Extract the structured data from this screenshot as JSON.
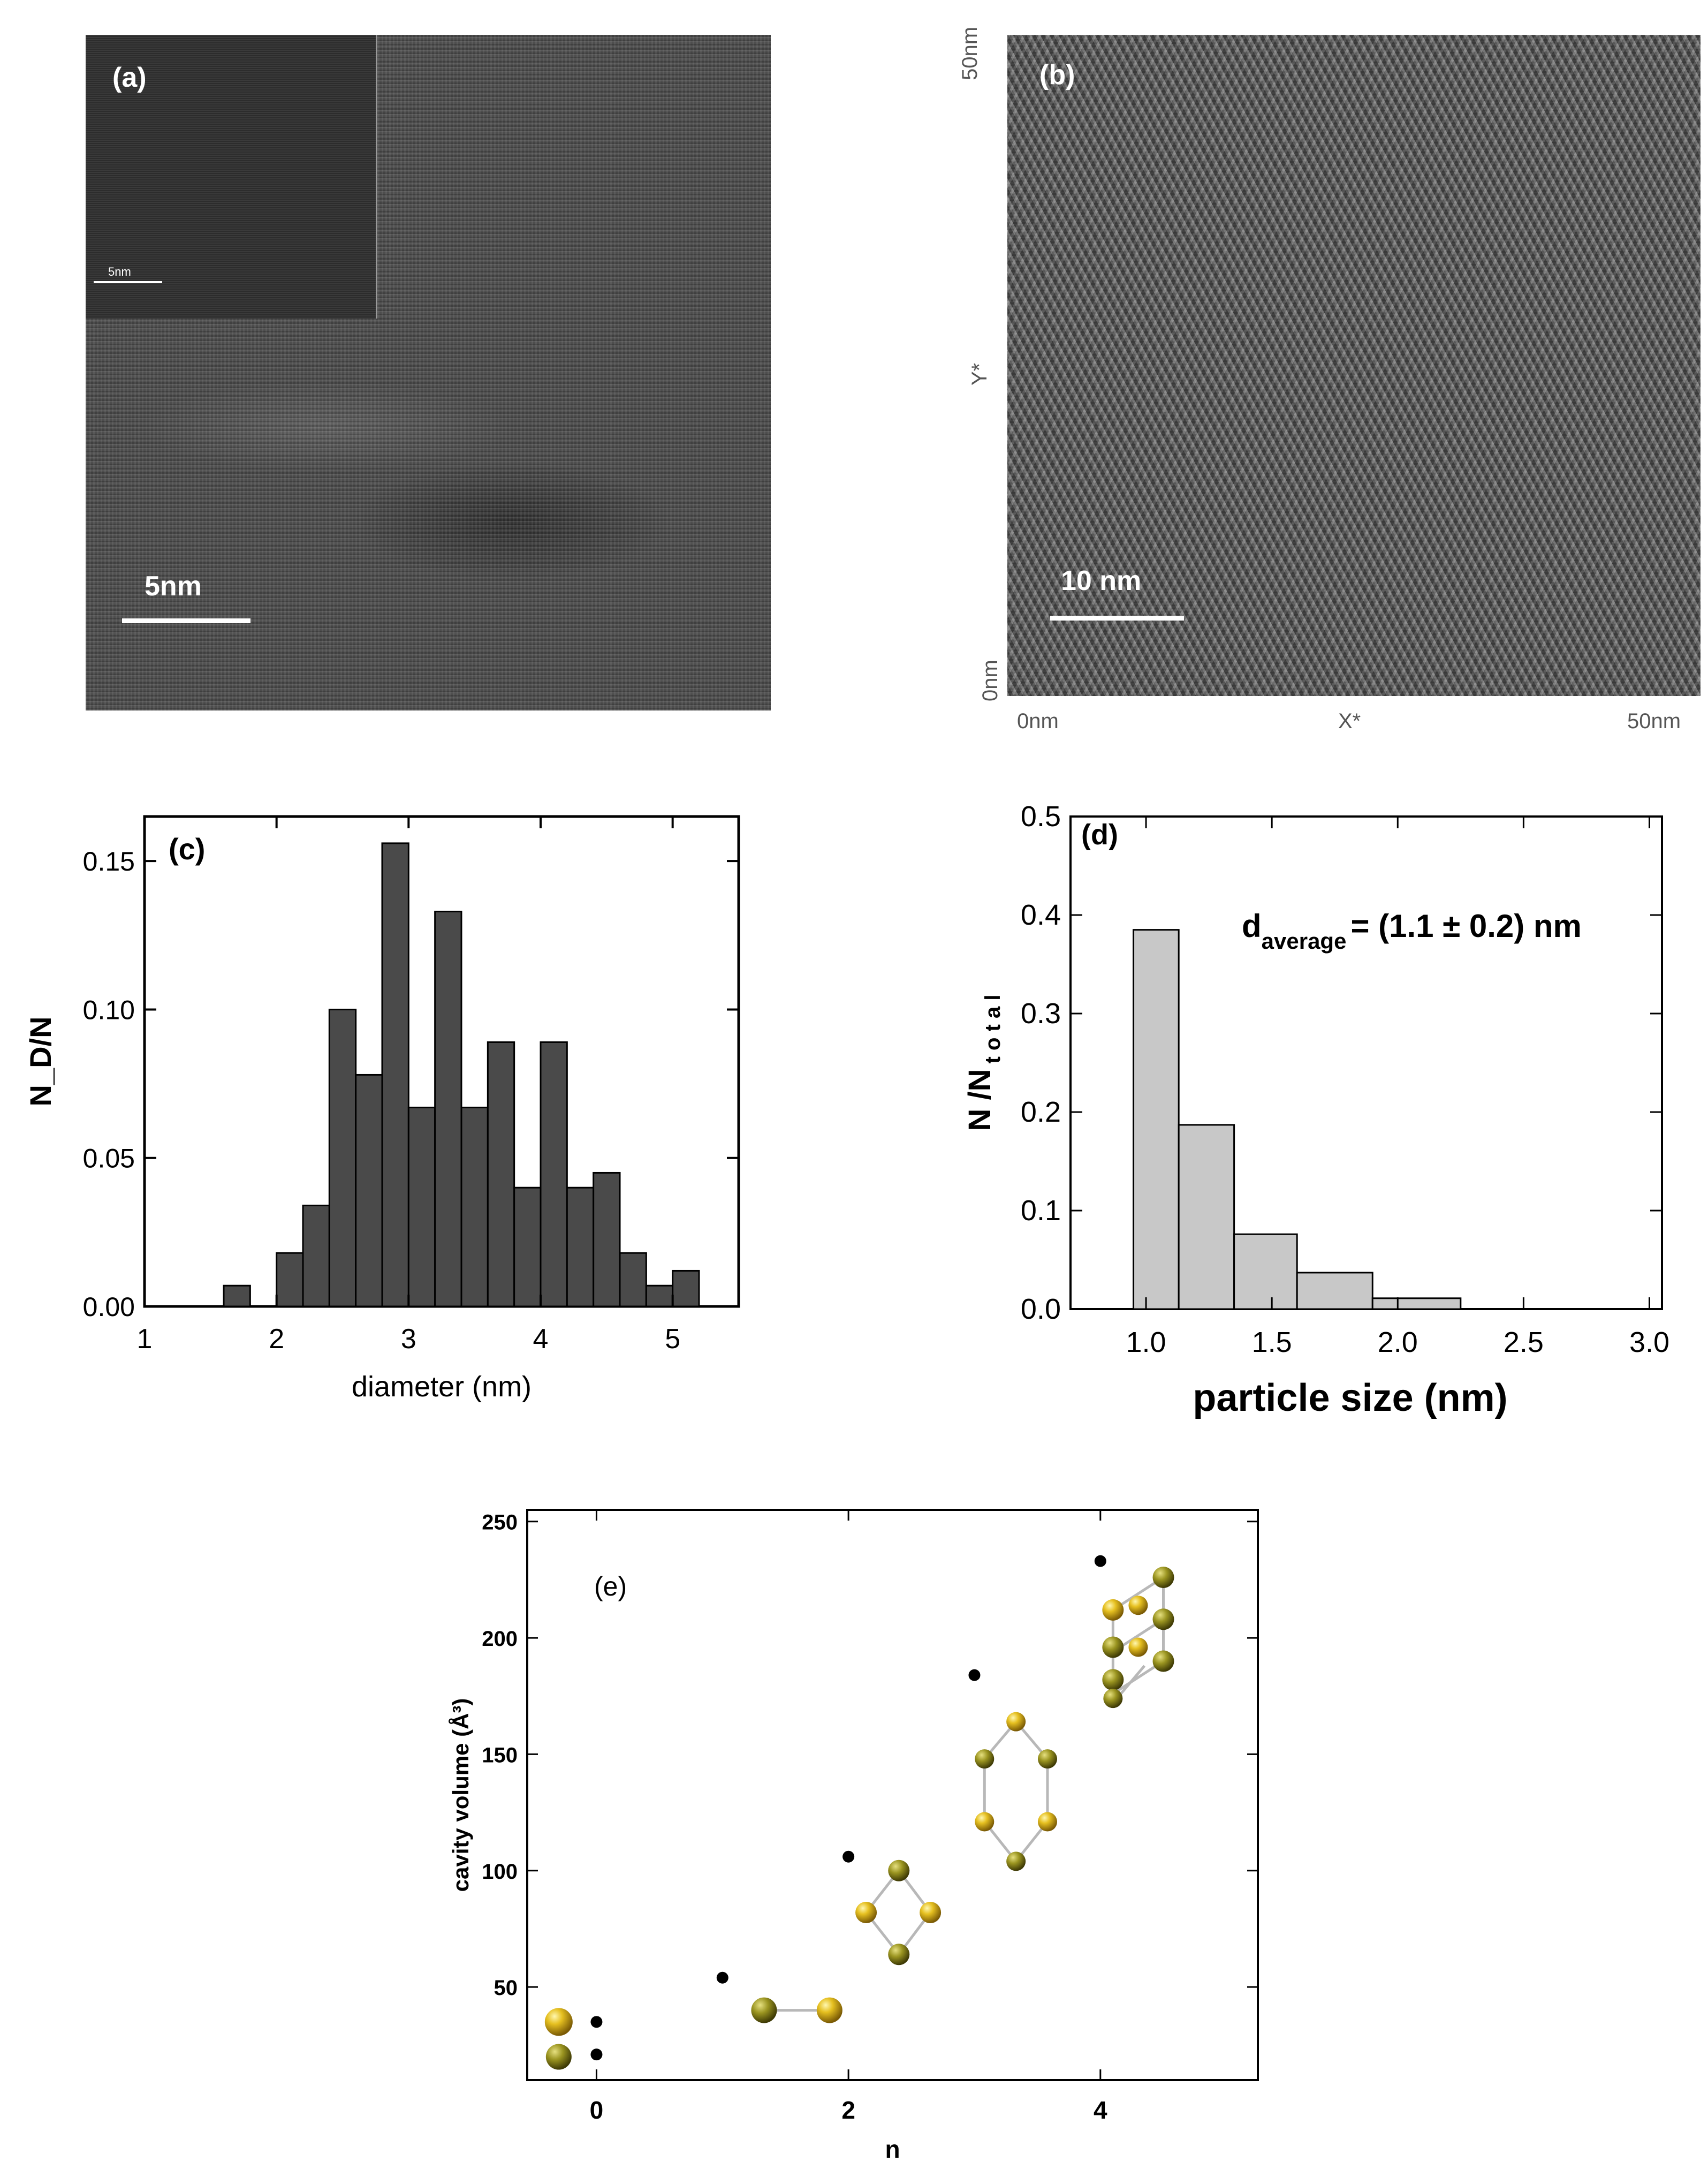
{
  "figure": {
    "panel_a": {
      "label": "(a)",
      "scale_bar_label": "5nm",
      "inset_scale_bar_label": "5nm"
    },
    "panel_b": {
      "label": "(b)",
      "scale_bar_label": "10 nm",
      "axis_y_top": "50nm",
      "axis_y_mid": "Y*",
      "axis_y_bottom": "0nm",
      "axis_x_left": "0nm",
      "axis_x_mid": "X*",
      "axis_x_right": "50nm"
    },
    "panel_e_label": "(e)"
  },
  "chart_data": [
    {
      "id": "c",
      "type": "bar",
      "label": "(c)",
      "xlabel": "diameter (nm)",
      "ylabel": "N_D/N",
      "xlim": [
        1,
        5.5
      ],
      "ylim": [
        0,
        0.165
      ],
      "xticks": [
        "1",
        "2",
        "3",
        "4",
        "5"
      ],
      "yticks": [
        "0.00",
        "0.05",
        "0.10",
        "0.15"
      ],
      "bin_width": 0.2,
      "bar_color": "#4a4a4a",
      "x": [
        1.7,
        1.9,
        2.1,
        2.3,
        2.5,
        2.7,
        2.9,
        3.1,
        3.3,
        3.5,
        3.7,
        3.9,
        4.1,
        4.3,
        4.5,
        4.7,
        4.9,
        5.1
      ],
      "values": [
        0.007,
        0.0,
        0.018,
        0.034,
        0.1,
        0.078,
        0.156,
        0.067,
        0.133,
        0.067,
        0.089,
        0.04,
        0.089,
        0.04,
        0.045,
        0.018,
        0.007,
        0.012
      ]
    },
    {
      "id": "d",
      "type": "bar",
      "label": "(d)",
      "xlabel": "particle size (nm)",
      "ylabel_main": "N /N",
      "ylabel_sub": "t o t a l",
      "annotation_main": "d",
      "annotation_sub": "average",
      "annotation_rest": "= (1.1 ± 0.2) nm",
      "xlim": [
        0.7,
        3.05
      ],
      "ylim": [
        0,
        0.5
      ],
      "xticks": [
        "1.0",
        "1.5",
        "2.0",
        "2.5",
        "3.0"
      ],
      "yticks": [
        "0.0",
        "0.1",
        "0.2",
        "0.3",
        "0.4",
        "0.5"
      ],
      "bar_color": "#c8c8c8",
      "bins": [
        {
          "x0": 0.95,
          "x1": 1.13,
          "value": 0.385
        },
        {
          "x0": 1.13,
          "x1": 1.35,
          "value": 0.187
        },
        {
          "x0": 1.35,
          "x1": 1.6,
          "value": 0.076
        },
        {
          "x0": 1.6,
          "x1": 1.9,
          "value": 0.037
        },
        {
          "x0": 1.9,
          "x1": 2.25,
          "value": 0.011
        }
      ]
    },
    {
      "id": "e",
      "type": "scatter",
      "label": "(e)",
      "xlabel": "n",
      "ylabel": "cavity volume (Å³)",
      "xlim": [
        -0.55,
        5.25
      ],
      "ylim": [
        10,
        255
      ],
      "xticks": [
        "0",
        "2",
        "4"
      ],
      "yticks": [
        "50",
        "100",
        "150",
        "200",
        "250"
      ],
      "x": [
        0,
        0,
        1,
        2,
        3,
        4
      ],
      "y": [
        21,
        35,
        54,
        106,
        184,
        233
      ]
    }
  ]
}
